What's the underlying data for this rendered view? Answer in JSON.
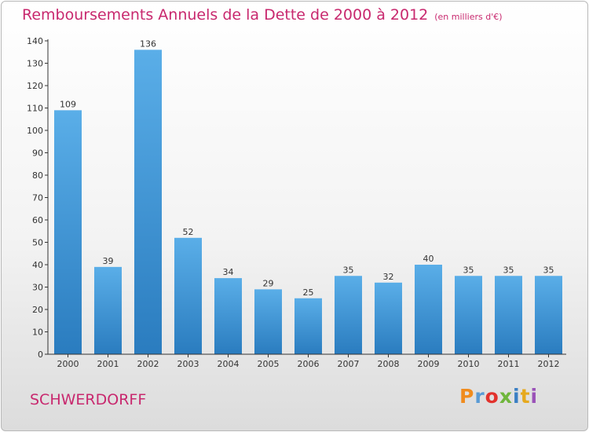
{
  "title": "Remboursements Annuels de la Dette de 2000 à 2012",
  "unit": "(en milliers d'€)",
  "commune": "SCHWERDORFF",
  "logo": {
    "text": "Proxiti",
    "colors": [
      "#f08c1e",
      "#5a9bd5",
      "#e2322d",
      "#6fb63c",
      "#3a7fc4",
      "#e6a91e",
      "#9a52b8"
    ]
  },
  "colors": {
    "title": "#c8286e",
    "bar_top": "#5aaee8",
    "bar_bottom": "#2a7cbf",
    "axis": "#333333"
  },
  "chart_data": {
    "type": "bar",
    "categories": [
      "2000",
      "2001",
      "2002",
      "2003",
      "2004",
      "2005",
      "2006",
      "2007",
      "2008",
      "2009",
      "2010",
      "2011",
      "2012"
    ],
    "values": [
      109,
      39,
      136,
      52,
      34,
      29,
      25,
      35,
      32,
      40,
      35,
      35,
      35
    ],
    "ylim": [
      0,
      140
    ],
    "yticks": [
      0,
      10,
      20,
      30,
      40,
      50,
      60,
      70,
      80,
      90,
      100,
      110,
      120,
      130,
      140
    ],
    "data_labels": true,
    "grid": false
  }
}
